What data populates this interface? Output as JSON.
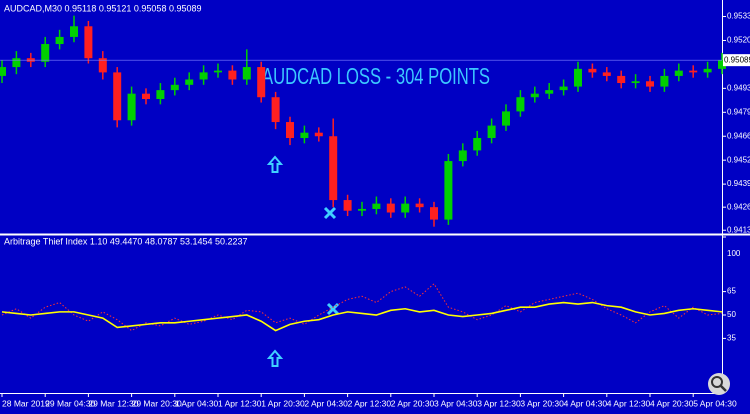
{
  "chart_data": [
    {
      "type": "candlestick",
      "title": "AUDCAD,M30 0.95118 0.95121 0.95058 0.95089",
      "annotation": "AUDCAD LOSS - 304 POINTS",
      "current_price": 0.95089,
      "up_color": "#00d000",
      "down_color": "#ff2020",
      "categories": [
        "28 Mar 2019",
        null,
        null,
        "29 Mar 04:30",
        null,
        null,
        "29 Mar 12:30",
        null,
        null,
        "29 Mar 20:30",
        null,
        null,
        "1 Apr 04:30",
        null,
        null,
        "1 Apr 12:30",
        null,
        null,
        "1 Apr 20:30",
        null,
        null,
        "2 Apr 04:30",
        null,
        null,
        "2 Apr 12:30",
        null,
        null,
        "2 Apr 20:30",
        null,
        null,
        "3 Apr 04:30",
        null,
        null,
        "3 Apr 12:30",
        null,
        null,
        "3 Apr 20:30",
        null,
        null,
        "4 Apr 04:30",
        null,
        null,
        "4 Apr 12:30",
        null,
        null,
        "4 Apr 20:30",
        null,
        null,
        "5 Apr 04:30",
        null,
        null
      ],
      "open": [
        0.95,
        0.9505,
        0.951,
        0.9508,
        0.9518,
        0.9522,
        0.9528,
        0.951,
        0.9502,
        0.9475,
        0.949,
        0.9487,
        0.9492,
        0.9495,
        0.9498,
        0.9502,
        0.9503,
        0.9498,
        0.9505,
        0.9488,
        0.9474,
        0.9465,
        0.9468,
        0.9466,
        0.943,
        0.9424,
        0.9425,
        0.9428,
        0.9423,
        0.9428,
        0.9426,
        0.9419,
        0.9452,
        0.9458,
        0.9465,
        0.9472,
        0.948,
        0.9488,
        0.949,
        0.9492,
        0.9494,
        0.9504,
        0.9502,
        0.95,
        0.9496,
        0.9497,
        0.9494,
        0.95,
        0.9503,
        0.9502,
        0.9504
      ],
      "high": [
        0.9509,
        0.9514,
        0.9513,
        0.9522,
        0.9526,
        0.9534,
        0.9531,
        0.9514,
        0.9505,
        0.9494,
        0.9493,
        0.9496,
        0.9499,
        0.9502,
        0.9506,
        0.9507,
        0.9506,
        0.9515,
        0.9508,
        0.9491,
        0.9477,
        0.9472,
        0.9471,
        0.9476,
        0.9433,
        0.9429,
        0.9432,
        0.9431,
        0.9432,
        0.9431,
        0.9429,
        0.9456,
        0.9462,
        0.9469,
        0.9476,
        0.9484,
        0.9492,
        0.9494,
        0.9496,
        0.9498,
        0.9508,
        0.9507,
        0.9505,
        0.9503,
        0.9501,
        0.95,
        0.9504,
        0.9507,
        0.9506,
        0.9508,
        0.9513
      ],
      "low": [
        0.9496,
        0.9501,
        0.9505,
        0.9505,
        0.9515,
        0.9519,
        0.9507,
        0.9498,
        0.9471,
        0.9472,
        0.9484,
        0.9484,
        0.9489,
        0.9492,
        0.9495,
        0.9499,
        0.9495,
        0.9495,
        0.9485,
        0.947,
        0.9461,
        0.9462,
        0.9463,
        0.9426,
        0.9421,
        0.9421,
        0.9422,
        0.942,
        0.942,
        0.9423,
        0.9415,
        0.9416,
        0.9449,
        0.9455,
        0.9462,
        0.9469,
        0.9477,
        0.9485,
        0.9487,
        0.9489,
        0.9491,
        0.9499,
        0.9497,
        0.9493,
        0.9493,
        0.9491,
        0.9491,
        0.9497,
        0.9499,
        0.9499,
        0.9501
      ],
      "close": [
        0.9505,
        0.951,
        0.9508,
        0.9518,
        0.9522,
        0.9528,
        0.951,
        0.9502,
        0.9475,
        0.949,
        0.9487,
        0.9492,
        0.9495,
        0.9498,
        0.9502,
        0.9503,
        0.9498,
        0.9505,
        0.9488,
        0.9474,
        0.9465,
        0.9468,
        0.9466,
        0.943,
        0.9424,
        0.9425,
        0.9428,
        0.9423,
        0.9428,
        0.9426,
        0.9419,
        0.9452,
        0.9458,
        0.9465,
        0.9472,
        0.948,
        0.9488,
        0.949,
        0.9492,
        0.9494,
        0.9504,
        0.9502,
        0.95,
        0.9496,
        0.9497,
        0.9494,
        0.95,
        0.9503,
        0.9502,
        0.9504,
        0.9509
      ],
      "ylim": [
        0.9412,
        0.954
      ],
      "yticks": [
        0.95335,
        {
          "value": 0.952,
          "label": "0.95200"
        },
        {
          "value": 0.9493,
          "label": "0.94930"
        },
        0.94795,
        {
          "value": 0.9466,
          "label": "0.94660"
        },
        0.94525,
        {
          "value": 0.9439,
          "label": "0.94390"
        },
        {
          "value": 0.9426,
          "label": "0.94260"
        },
        {
          "value": 0.9413,
          "label": "0.94130"
        }
      ]
    },
    {
      "type": "line",
      "title": "Arbitrage Thief Index 1.10 49.4470 48.0787 53.1454 50.2237",
      "series": [
        {
          "color": "#ffff00",
          "values": [
            52,
            51,
            50,
            51,
            52,
            52,
            50,
            48,
            42,
            43,
            44,
            45,
            45,
            46,
            47,
            48,
            49,
            50,
            46,
            40,
            44,
            46,
            47,
            50,
            52,
            51,
            50,
            53,
            54,
            52,
            53,
            50,
            49,
            50,
            51,
            53,
            55,
            55,
            57,
            58,
            57,
            58,
            56,
            55,
            52,
            50,
            51,
            53,
            54,
            53,
            52
          ]
        },
        {
          "color": "#ff3030",
          "dashed": true,
          "values": [
            50,
            54,
            48,
            55,
            58,
            50,
            46,
            52,
            47,
            40,
            45,
            43,
            48,
            44,
            46,
            50,
            47,
            53,
            52,
            45,
            48,
            44,
            50,
            55,
            60,
            62,
            58,
            65,
            68,
            62,
            70,
            55,
            52,
            47,
            50,
            56,
            52,
            58,
            60,
            62,
            64,
            60,
            54,
            50,
            45,
            52,
            56,
            48,
            55,
            50,
            51
          ]
        }
      ],
      "ylim": [
        0,
        100
      ],
      "yticks": [
        100,
        65,
        50,
        35
      ]
    }
  ]
}
